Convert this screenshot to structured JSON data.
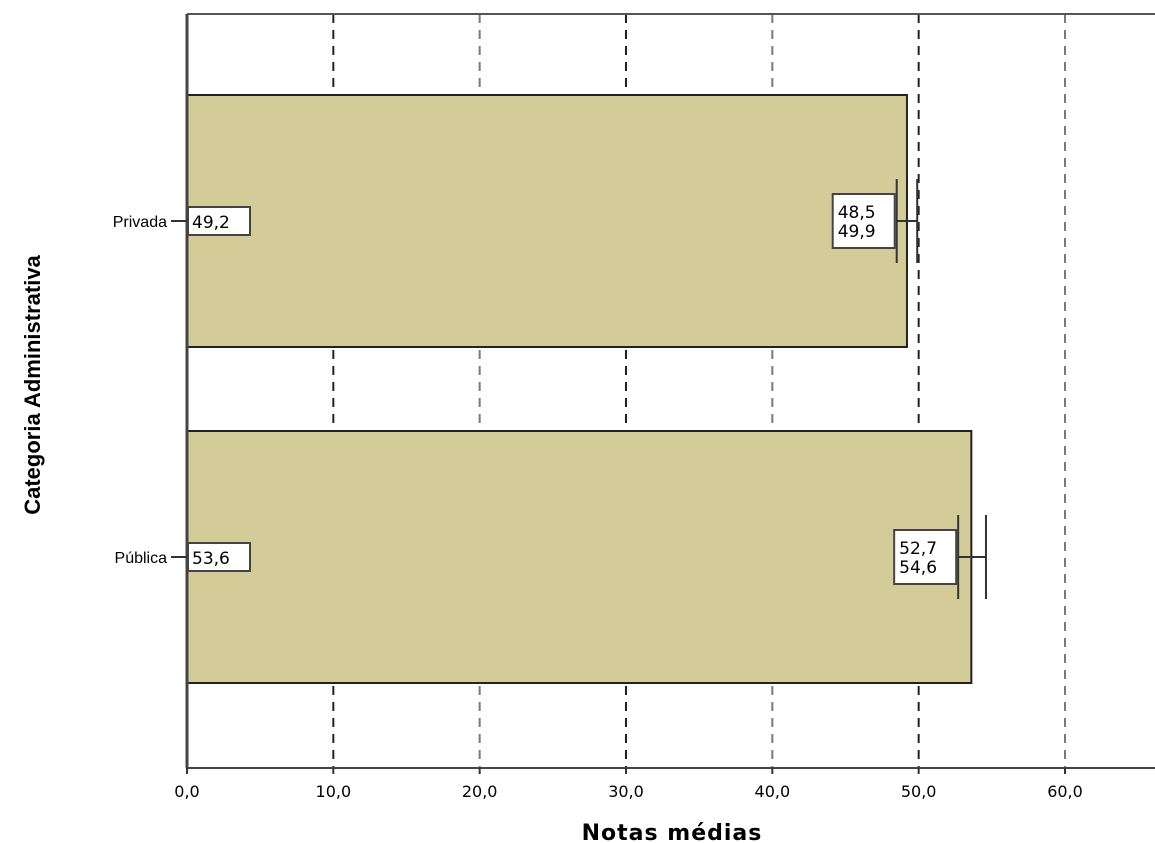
{
  "chart_data": {
    "type": "bar",
    "orientation": "horizontal",
    "categories": [
      "Privada",
      "Pública"
    ],
    "values": [
      49.2,
      53.6
    ],
    "value_labels": [
      "49,2",
      "53,6"
    ],
    "error_bars": [
      {
        "low": 48.5,
        "high": 49.9,
        "low_label": "48,5",
        "high_label": "49,9"
      },
      {
        "low": 52.7,
        "high": 54.6,
        "low_label": "52,7",
        "high_label": "54,6"
      }
    ],
    "xlabel": "Notas médias",
    "ylabel": "Categoria Administrativa",
    "xlim": [
      0,
      66
    ],
    "xticks": [
      0,
      10,
      20,
      30,
      40,
      50,
      60
    ],
    "xtick_labels": [
      "0,0",
      "10,0",
      "20,0",
      "30,0",
      "40,0",
      "50,0",
      "60,0"
    ],
    "grid": "vertical dashed",
    "bar_color": "#d3cc99"
  }
}
